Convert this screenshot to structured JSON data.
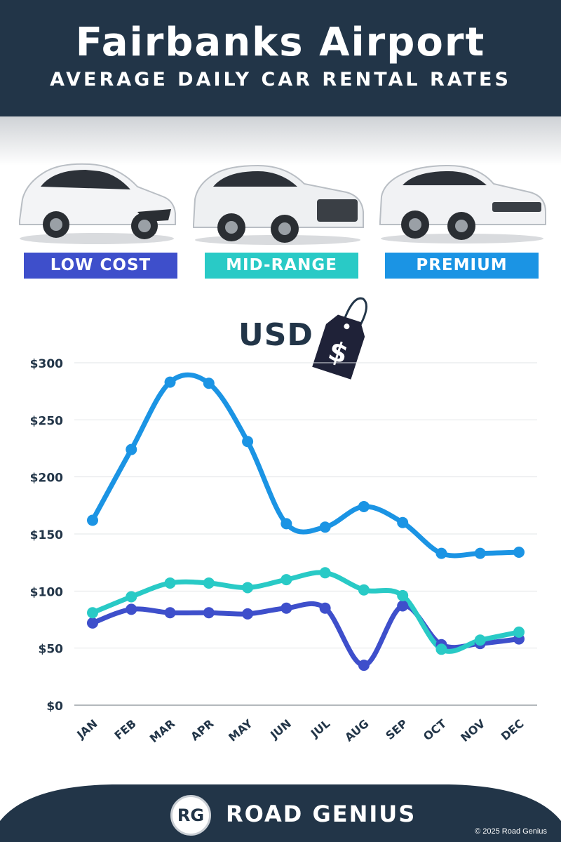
{
  "header": {
    "title": "Fairbanks Airport",
    "subtitle": "AVERAGE DAILY CAR RENTAL RATES"
  },
  "categories": [
    {
      "label": "LOW COST",
      "color": "#3e4fcb"
    },
    {
      "label": "MID-RANGE",
      "color": "#29cac6"
    },
    {
      "label": "PREMIUM",
      "color": "#1b94e4"
    }
  ],
  "currency_label": "USD",
  "tag_symbol": "$",
  "chart_data": {
    "type": "line",
    "x": [
      "JAN",
      "FEB",
      "MAR",
      "APR",
      "MAY",
      "JUN",
      "JUL",
      "AUG",
      "SEP",
      "OCT",
      "NOV",
      "DEC"
    ],
    "y_ticks": [
      "$0",
      "$50",
      "$100",
      "$150",
      "$200",
      "$250",
      "$300"
    ],
    "ylim": [
      0,
      300
    ],
    "grid": true,
    "series": [
      {
        "name": "LOW COST",
        "color": "#3e4fcb",
        "values": [
          72,
          84,
          81,
          81,
          80,
          85,
          85,
          35,
          87,
          53,
          54,
          58
        ]
      },
      {
        "name": "MID-RANGE",
        "color": "#29cac6",
        "values": [
          81,
          95,
          107,
          107,
          103,
          110,
          116,
          101,
          96,
          49,
          57,
          64
        ]
      },
      {
        "name": "PREMIUM",
        "color": "#1b94e4",
        "values": [
          162,
          224,
          283,
          282,
          231,
          159,
          156,
          174,
          160,
          133,
          133,
          134
        ]
      }
    ]
  },
  "footer": {
    "logo_text": "RG",
    "brand": "ROAD GENIUS",
    "copyright": "© 2025 Road Genius"
  }
}
